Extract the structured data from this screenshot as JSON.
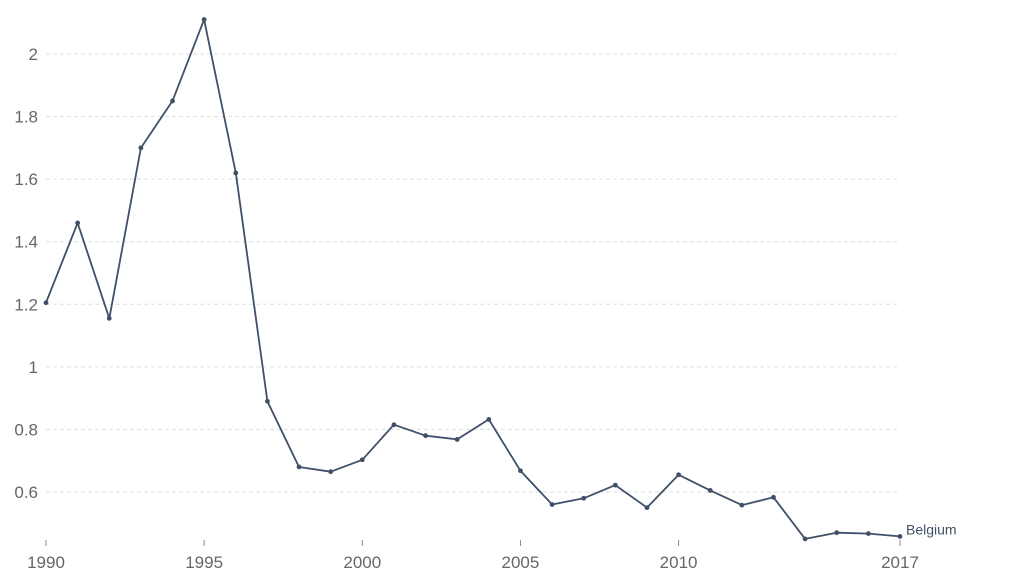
{
  "chart_data": {
    "type": "line",
    "title": "",
    "xlabel": "",
    "ylabel": "",
    "x": [
      1990,
      1991,
      1992,
      1993,
      1994,
      1995,
      1996,
      1997,
      1998,
      1999,
      2000,
      2001,
      2002,
      2003,
      2004,
      2005,
      2006,
      2007,
      2008,
      2009,
      2010,
      2011,
      2012,
      2013,
      2014,
      2015,
      2016,
      2017
    ],
    "series": [
      {
        "name": "Belgium",
        "color": "#3f5068",
        "values": [
          1.205,
          1.46,
          1.155,
          1.7,
          1.85,
          2.11,
          1.62,
          0.89,
          0.68,
          0.665,
          0.703,
          0.815,
          0.78,
          0.768,
          0.832,
          0.668,
          0.56,
          0.58,
          0.622,
          0.55,
          0.655,
          0.605,
          0.558,
          0.583,
          0.45,
          0.47,
          0.467,
          0.458
        ]
      }
    ],
    "xlim": [
      1990,
      2017
    ],
    "ylim": [
      0.45,
      2.1
    ],
    "x_ticks": [
      "1990",
      "1995",
      "2000",
      "2005",
      "2010",
      "2017"
    ],
    "y_ticks": [
      "0.6",
      "0.8",
      "1",
      "1.2",
      "1.4",
      "1.6",
      "1.8",
      "2"
    ],
    "grid": true,
    "legend": "end-of-line"
  }
}
